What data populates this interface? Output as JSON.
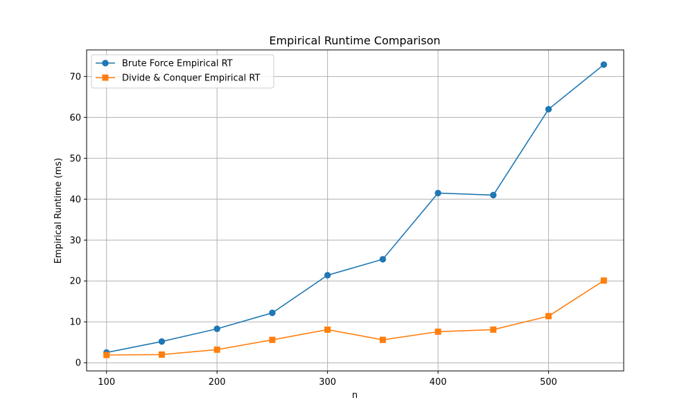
{
  "chart_data": {
    "type": "line",
    "title": "Empirical Runtime Comparison",
    "xlabel": "n",
    "ylabel": "Empirical Runtime (ms)",
    "x": [
      100,
      150,
      200,
      250,
      300,
      350,
      400,
      450,
      500,
      550
    ],
    "xlim": [
      82,
      568
    ],
    "ylim": [
      -2,
      76.5
    ],
    "xticks": [
      100,
      200,
      300,
      400,
      500
    ],
    "yticks": [
      0,
      10,
      20,
      30,
      40,
      50,
      60,
      70
    ],
    "grid": true,
    "legend_position": "top-left",
    "series": [
      {
        "name": "Brute Force Empirical RT",
        "color": "#1f77b4",
        "marker": "circle",
        "values": [
          2.5,
          5.2,
          8.3,
          12.2,
          21.4,
          25.3,
          41.5,
          41.0,
          62.0,
          72.9
        ]
      },
      {
        "name": "Divide & Conquer Empirical RT",
        "color": "#ff7f0e",
        "marker": "square",
        "values": [
          1.9,
          2.0,
          3.2,
          5.6,
          8.1,
          5.6,
          7.6,
          8.1,
          11.4,
          20.1
        ]
      }
    ]
  }
}
